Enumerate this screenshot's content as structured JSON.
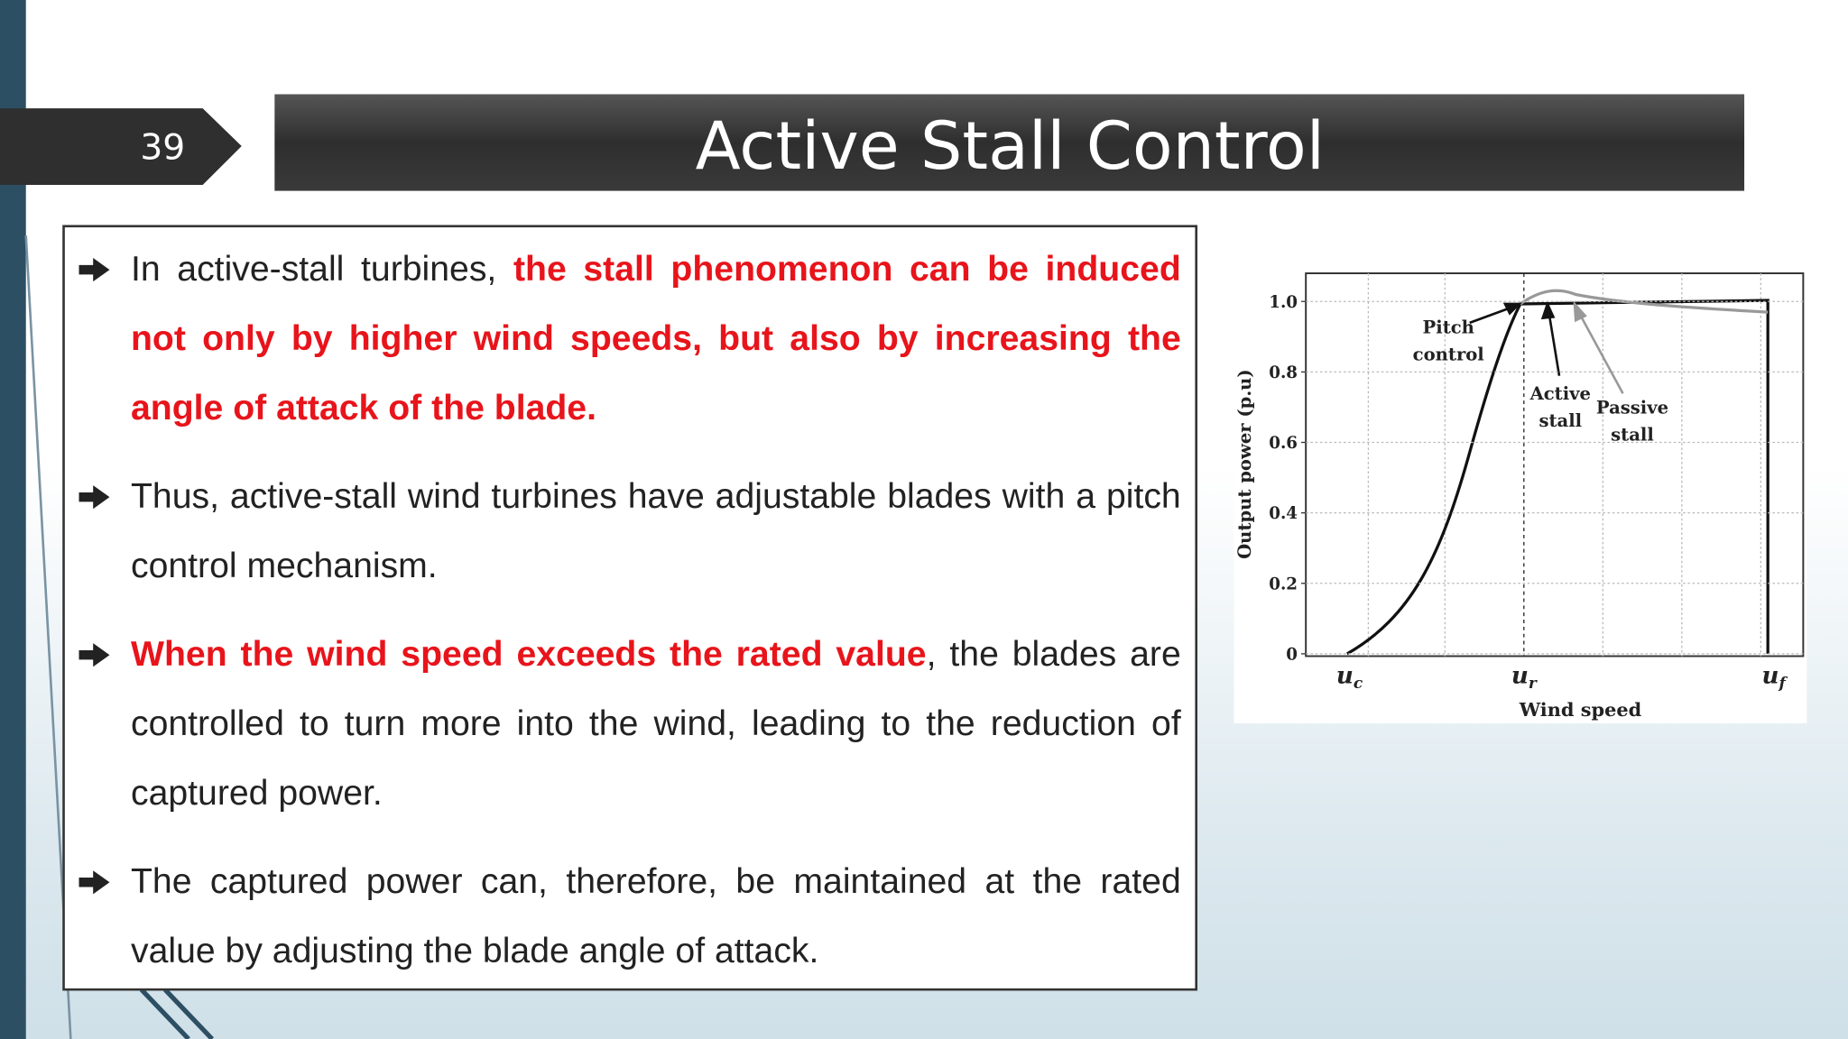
{
  "slide": {
    "number": "39",
    "title": "Active Stall Control"
  },
  "bullets": [
    [
      {
        "text": "In active-stall turbines, ",
        "red": false
      },
      {
        "text": "the stall phenomenon can be induced not only by higher wind speeds, but also by increasing the angle of attack of the blade.",
        "red": true
      }
    ],
    [
      {
        "text": "Thus, active-stall wind turbines have adjustable blades with a pitch control mechanism.",
        "red": false
      }
    ],
    [
      {
        "text": "When the wind speed exceeds the rated value",
        "red": true
      },
      {
        "text": ", the blades are controlled to turn more into the wind, leading to the reduction of captured power.",
        "red": false
      }
    ],
    [
      {
        "text": "The captured power can, therefore, be maintained at the rated value by adjusting the blade angle of attack.",
        "red": false
      }
    ]
  ],
  "figure": {
    "y_label": "Output power (p.u)",
    "x_label": "Wind speed",
    "ylim": [
      0,
      1.08
    ],
    "yticks": [
      0,
      0.2,
      0.4,
      0.6,
      0.8,
      {
        "value": 1,
        "label": "1.0"
      }
    ],
    "xticks": [
      {
        "main": "u",
        "sub": "c"
      },
      {
        "main": "u",
        "sub": "r"
      },
      {
        "main": "u",
        "sub": "f"
      }
    ],
    "annotations": [
      {
        "lines": [
          "Pitch",
          "control"
        ]
      },
      {
        "lines": [
          "Active",
          "stall"
        ]
      },
      {
        "lines": [
          "Passive",
          "stall"
        ]
      }
    ]
  }
}
